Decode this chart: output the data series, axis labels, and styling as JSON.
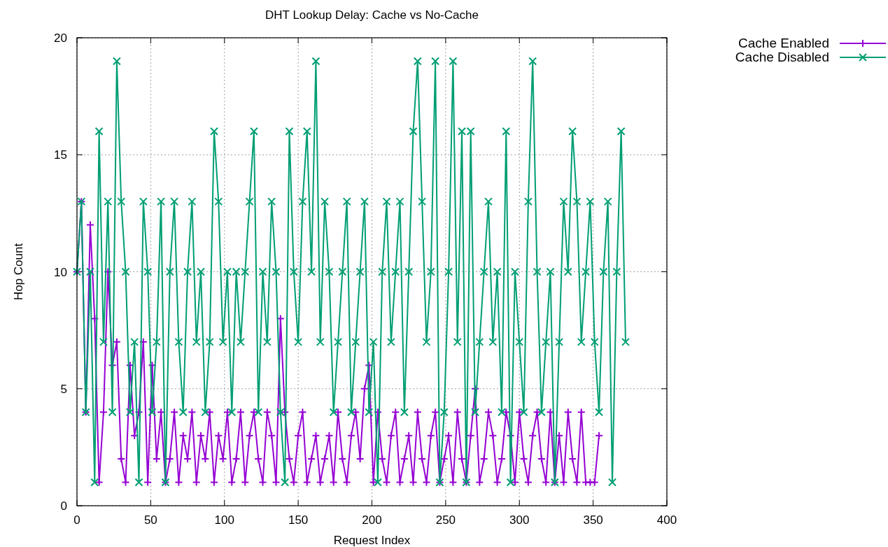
{
  "chart_data": {
    "type": "line",
    "title": "DHT Lookup Delay: Cache vs No-Cache",
    "xlabel": "Request Index",
    "ylabel": "Hop Count",
    "xlim": [
      0,
      400
    ],
    "xticks": [
      0,
      50,
      100,
      150,
      200,
      250,
      300,
      350,
      400
    ],
    "ylim": [
      0,
      20
    ],
    "yticks": [
      0,
      5,
      10,
      15,
      20
    ],
    "grid": true,
    "legend": "top right",
    "line_style": "solid",
    "series": [
      {
        "name": "Cache Enabled",
        "color": "#9400d3",
        "marker": "cross",
        "x": [
          0,
          3,
          6,
          9,
          12,
          15,
          18,
          21,
          24,
          27,
          30,
          33,
          36,
          39,
          42,
          45,
          48,
          51,
          54,
          57,
          60,
          63,
          66,
          69,
          72,
          75,
          78,
          81,
          84,
          87,
          90,
          93,
          96,
          99,
          102,
          105,
          108,
          111,
          114,
          117,
          120,
          123,
          126,
          129,
          132,
          135,
          138,
          141,
          144,
          147,
          150,
          153,
          156,
          159,
          162,
          165,
          168,
          171,
          174,
          177,
          180,
          183,
          186,
          189,
          192,
          195,
          198,
          201,
          204,
          207,
          210,
          213,
          216,
          219,
          222,
          225,
          228,
          231,
          234,
          237,
          240,
          243,
          246,
          249,
          252,
          255,
          258,
          261,
          264,
          267,
          270,
          273,
          276,
          279,
          282,
          285,
          288,
          291,
          294,
          297,
          300,
          303,
          306,
          309,
          312,
          315,
          318,
          321,
          324,
          327,
          330,
          333,
          336,
          339,
          342,
          345,
          348,
          351,
          354
        ],
        "values": [
          10,
          13,
          4,
          12,
          8,
          1,
          4,
          10,
          6,
          7,
          2,
          1,
          6,
          3,
          4,
          7,
          1,
          6,
          2,
          4,
          1,
          2,
          4,
          1,
          3,
          2,
          4,
          1,
          3,
          2,
          4,
          1,
          3,
          2,
          4,
          1,
          2,
          4,
          1,
          3,
          4,
          2,
          1,
          4,
          3,
          1,
          8,
          4,
          2,
          1,
          3,
          4,
          1,
          2,
          3,
          1,
          2,
          3,
          1,
          4,
          2,
          1,
          3,
          4,
          2,
          5,
          6,
          1,
          4,
          2,
          1,
          3,
          4,
          1,
          2,
          3,
          1,
          4,
          2,
          1,
          3,
          4,
          1,
          2,
          3,
          1,
          4,
          2,
          1,
          3,
          5,
          1,
          2,
          4,
          3,
          1,
          2,
          4,
          3,
          1,
          4,
          2,
          1,
          3,
          4,
          2,
          1,
          4,
          1,
          3,
          1,
          4,
          2,
          1,
          4,
          1,
          1,
          1,
          3
        ]
      },
      {
        "name": "Cache Disabled",
        "color": "#009e73",
        "marker": "cross",
        "x": [
          0,
          3,
          6,
          9,
          12,
          15,
          18,
          21,
          24,
          27,
          30,
          33,
          36,
          39,
          42,
          45,
          48,
          51,
          54,
          57,
          60,
          63,
          66,
          69,
          72,
          75,
          78,
          81,
          84,
          87,
          90,
          93,
          96,
          99,
          102,
          105,
          108,
          111,
          114,
          117,
          120,
          123,
          126,
          129,
          132,
          135,
          138,
          141,
          144,
          147,
          150,
          153,
          156,
          159,
          162,
          165,
          168,
          171,
          174,
          177,
          180,
          183,
          186,
          189,
          192,
          195,
          198,
          201,
          204,
          207,
          210,
          213,
          216,
          219,
          222,
          225,
          228,
          231,
          234,
          237,
          240,
          243,
          246,
          249,
          252,
          255,
          258,
          261,
          264,
          267,
          270,
          273,
          276,
          279,
          282,
          285,
          288,
          291,
          294,
          297,
          300,
          303,
          306,
          309,
          312,
          315,
          318,
          321,
          324,
          327,
          330,
          333,
          336,
          339,
          342,
          345,
          348,
          351,
          354,
          357,
          360,
          363,
          366,
          369,
          372
        ],
        "values": [
          10,
          13,
          4,
          10,
          1,
          16,
          7,
          13,
          4,
          19,
          13,
          10,
          4,
          7,
          1,
          13,
          10,
          4,
          7,
          13,
          1,
          10,
          13,
          7,
          4,
          10,
          13,
          7,
          10,
          4,
          7,
          16,
          13,
          7,
          10,
          4,
          10,
          7,
          10,
          13,
          16,
          4,
          10,
          7,
          13,
          10,
          4,
          1,
          16,
          10,
          7,
          13,
          16,
          10,
          19,
          7,
          13,
          10,
          4,
          7,
          10,
          13,
          4,
          7,
          10,
          13,
          4,
          7,
          1,
          10,
          13,
          7,
          10,
          13,
          4,
          10,
          16,
          19,
          13,
          7,
          10,
          19,
          1,
          4,
          10,
          19,
          7,
          16,
          1,
          16,
          4,
          7,
          10,
          13,
          7,
          10,
          4,
          16,
          1,
          10,
          7,
          4,
          13,
          19,
          10,
          4,
          7,
          10,
          1,
          7,
          13,
          10,
          16,
          13,
          7,
          10,
          13,
          7,
          4,
          10,
          13,
          1,
          10,
          16,
          7
        ]
      }
    ]
  }
}
